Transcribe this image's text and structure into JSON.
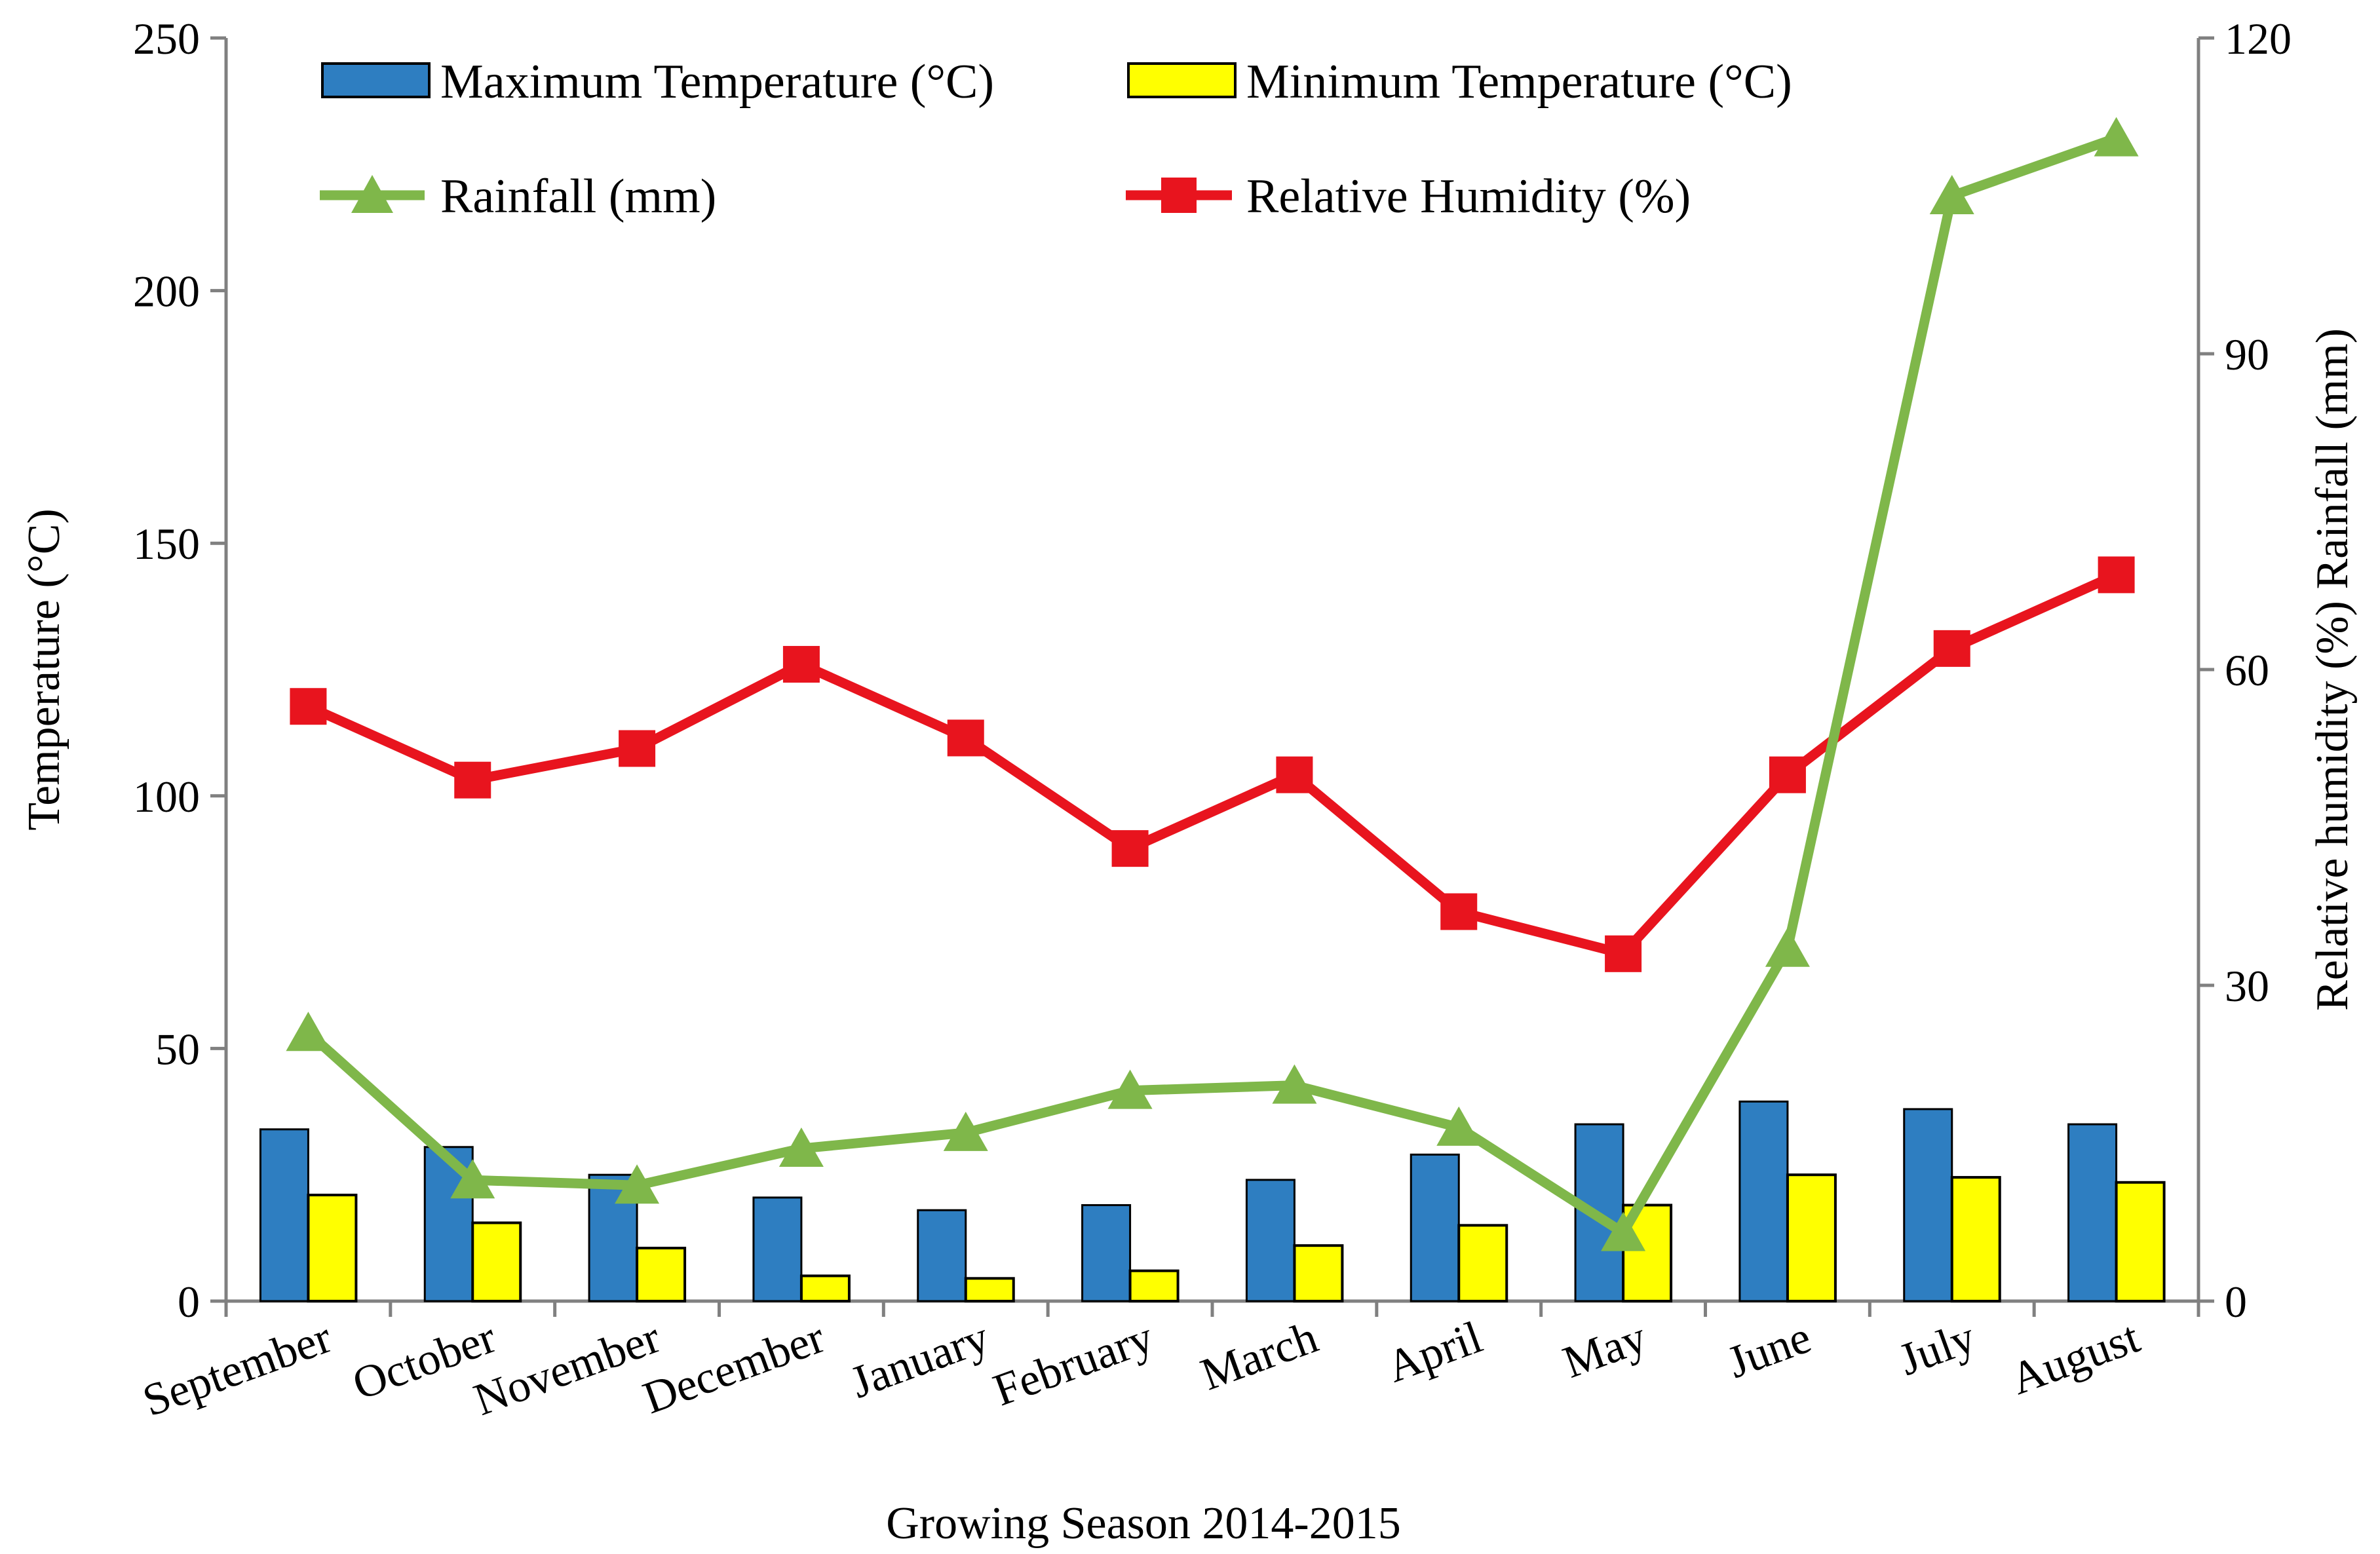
{
  "chart_data": {
    "type": "bar+line",
    "title": "",
    "xlabel": "Growing Season 2014-2015",
    "ylabel_left": "Temperature (°C)",
    "ylabel_right": "Relative humidity (%) Rainfall (mm)",
    "ylim_left": [
      0,
      250
    ],
    "ylim_right": [
      0,
      120
    ],
    "yticks_left": [
      "0",
      "50",
      "100",
      "150",
      "200",
      "250"
    ],
    "yticks_right": [
      "0",
      "30",
      "60",
      "90",
      "120"
    ],
    "categories": [
      "September",
      "October",
      "November",
      "December",
      "January",
      "February",
      "March",
      "April",
      "May",
      "June",
      "July",
      "August"
    ],
    "series": [
      {
        "name": "Maximum Temperature (°C)",
        "type": "bar",
        "axis": "left",
        "color": "#2E7EC1",
        "values": [
          34,
          30.5,
          25,
          20.5,
          18,
          19,
          24,
          29,
          35,
          39.5,
          38,
          35
        ]
      },
      {
        "name": "Minimum Temperature (°C)",
        "type": "bar",
        "axis": "left",
        "color": "#FFFF00",
        "values": [
          21,
          15.5,
          10.5,
          5,
          4.5,
          6,
          11,
          15,
          19,
          25,
          24.5,
          23.5
        ]
      },
      {
        "name": "Rainfall (mm)",
        "type": "line",
        "axis": "right",
        "color": "#7FB74A",
        "marker": "triangle",
        "values": [
          25.5,
          11.5,
          11,
          14.5,
          16,
          20,
          20.5,
          16.5,
          6.5,
          33.5,
          105,
          110.5
        ]
      },
      {
        "name": "Relative Humidity (%)",
        "type": "line",
        "axis": "right",
        "color": "#E8141E",
        "marker": "square",
        "values": [
          56.5,
          49.5,
          52.5,
          60.5,
          53.5,
          43,
          50,
          37,
          33,
          50,
          62,
          69
        ]
      }
    ],
    "legend": {
      "position": "top"
    }
  }
}
